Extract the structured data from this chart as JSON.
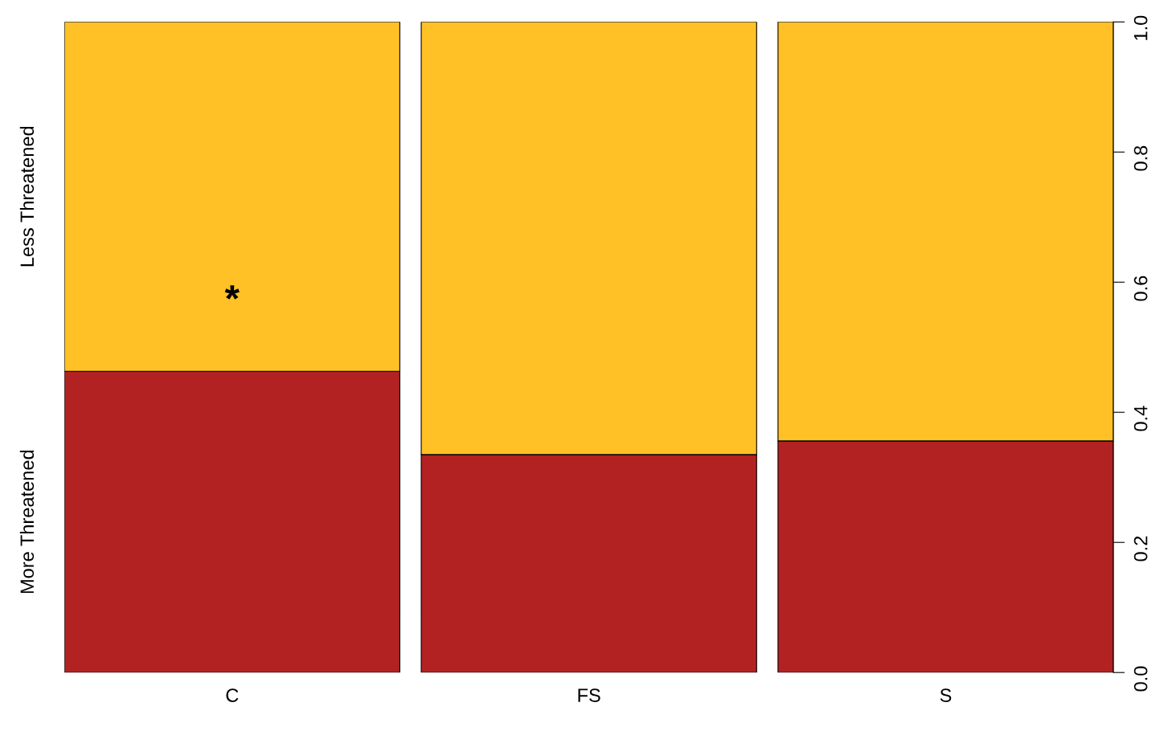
{
  "chart_data": {
    "type": "bar",
    "stacked": true,
    "categories": [
      "C",
      "FS",
      "S"
    ],
    "series": [
      {
        "name": "More Threatened",
        "color": "#b22222",
        "values": [
          0.463,
          0.335,
          0.356
        ]
      },
      {
        "name": "Less Threatened",
        "color": "#ffc125",
        "values": [
          0.537,
          0.665,
          0.644
        ]
      }
    ],
    "ylim": [
      0,
      1
    ],
    "yticks": [
      {
        "value": 0,
        "label": "0.0"
      },
      0.2,
      0.4,
      0.6,
      0.8,
      {
        "value": 1,
        "label": "1.0"
      }
    ],
    "annotations": [
      "*"
    ],
    "grid": false,
    "legend": false
  }
}
